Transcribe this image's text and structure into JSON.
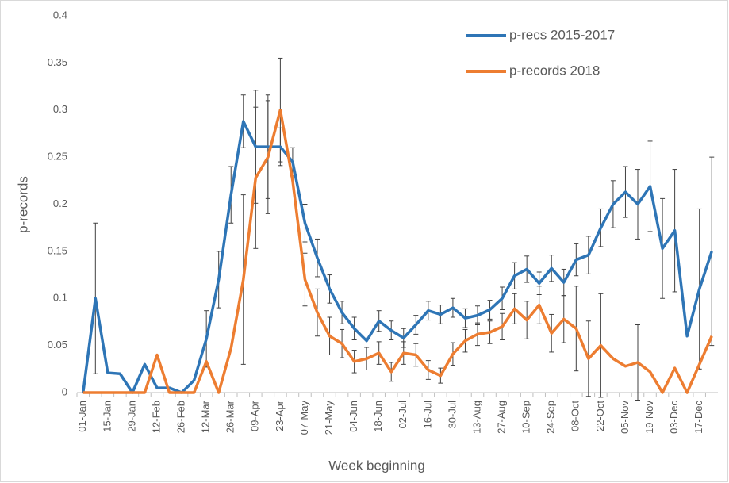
{
  "chart_data": {
    "type": "line",
    "x_label": "Week beginning",
    "y_label": "p-records",
    "categories": [
      "01-Jan",
      null,
      "15-Jan",
      null,
      "29-Jan",
      null,
      "12-Feb",
      null,
      "26-Feb",
      null,
      "12-Mar",
      null,
      "26-Mar",
      null,
      "09-Apr",
      null,
      "23-Apr",
      null,
      "07-May",
      null,
      "21-May",
      null,
      "04-Jun",
      null,
      "18-Jun",
      null,
      "02-Jul",
      null,
      "16-Jul",
      null,
      "30-Jul",
      null,
      "13-Aug",
      null,
      "27-Aug",
      null,
      "10-Sep",
      null,
      "24-Sep",
      null,
      "08-Oct",
      null,
      "22-Oct",
      null,
      "05-Nov",
      null,
      "19-Nov",
      null,
      "03-Dec",
      null,
      "17-Dec",
      null
    ],
    "series": [
      {
        "name": "p-recs 2015-2017",
        "color": "#2e75b6",
        "values": [
          0,
          0.1,
          0.021,
          0.02,
          0,
          0.03,
          0.005,
          0.005,
          0,
          0.013,
          0.057,
          0.12,
          0.21,
          0.288,
          0.261,
          0.261,
          0.261,
          0.245,
          0.18,
          0.143,
          0.11,
          0.085,
          0.068,
          0.055,
          0.076,
          0.066,
          0.058,
          0.072,
          0.087,
          0.083,
          0.09,
          0.079,
          0.082,
          0.088,
          0.1,
          0.124,
          0.131,
          0.116,
          0.132,
          0.117,
          0.141,
          0.146,
          0.175,
          0.2,
          0.213,
          0.2,
          0.219,
          0.153,
          0.172,
          0.06,
          0.11,
          0.15
        ],
        "errors": [
          null,
          0.08,
          null,
          null,
          null,
          null,
          null,
          null,
          null,
          null,
          0.03,
          0.03,
          0.03,
          0.028,
          0.06,
          0.055,
          0.02,
          0.015,
          0.02,
          0.02,
          0.015,
          0.012,
          0.012,
          null,
          0.011,
          0.01,
          0.01,
          0.01,
          0.01,
          0.01,
          0.01,
          0.01,
          0.01,
          0.01,
          0.012,
          0.014,
          0.014,
          0.012,
          0.014,
          0.014,
          0.017,
          0.02,
          0.02,
          0.025,
          0.027,
          0.037,
          0.048,
          0.053,
          0.065,
          null,
          0.085,
          0.1
        ]
      },
      {
        "name": "p-records 2018",
        "color": "#ed7d31",
        "values": [
          0,
          0,
          0,
          0,
          0,
          0,
          0.04,
          0,
          0,
          0,
          0.033,
          0,
          0.047,
          0.12,
          0.228,
          0.25,
          0.3,
          0.225,
          0.12,
          0.085,
          0.06,
          0.052,
          0.033,
          0.036,
          0.042,
          0.022,
          0.042,
          0.04,
          0.024,
          0.018,
          0.041,
          0.055,
          0.062,
          0.064,
          0.07,
          0.089,
          0.077,
          0.093,
          0.063,
          0.078,
          0.068,
          0.036,
          0.05,
          0.036,
          0.028,
          0.032,
          0.022,
          0,
          0.026,
          0,
          0.03,
          0.06
        ],
        "errors": [
          null,
          null,
          null,
          null,
          null,
          null,
          null,
          null,
          null,
          null,
          null,
          null,
          null,
          0.09,
          0.075,
          0.06,
          0.055,
          null,
          0.028,
          0.025,
          0.02,
          0.015,
          0.012,
          0.012,
          0.012,
          0.01,
          0.012,
          0.012,
          0.01,
          0.008,
          0.012,
          0.012,
          0.012,
          0.012,
          0.014,
          0.016,
          0.02,
          0.02,
          0.02,
          0.025,
          0.045,
          0.04,
          0.055,
          null,
          null,
          0.04,
          null,
          null,
          null,
          null,
          null,
          null
        ]
      }
    ],
    "ylim": [
      0,
      0.4
    ],
    "yticks": [
      0,
      0.05,
      0.1,
      0.15,
      0.2,
      0.25,
      0.3,
      0.35,
      0.4
    ],
    "grid": false,
    "legend": "top-right"
  }
}
